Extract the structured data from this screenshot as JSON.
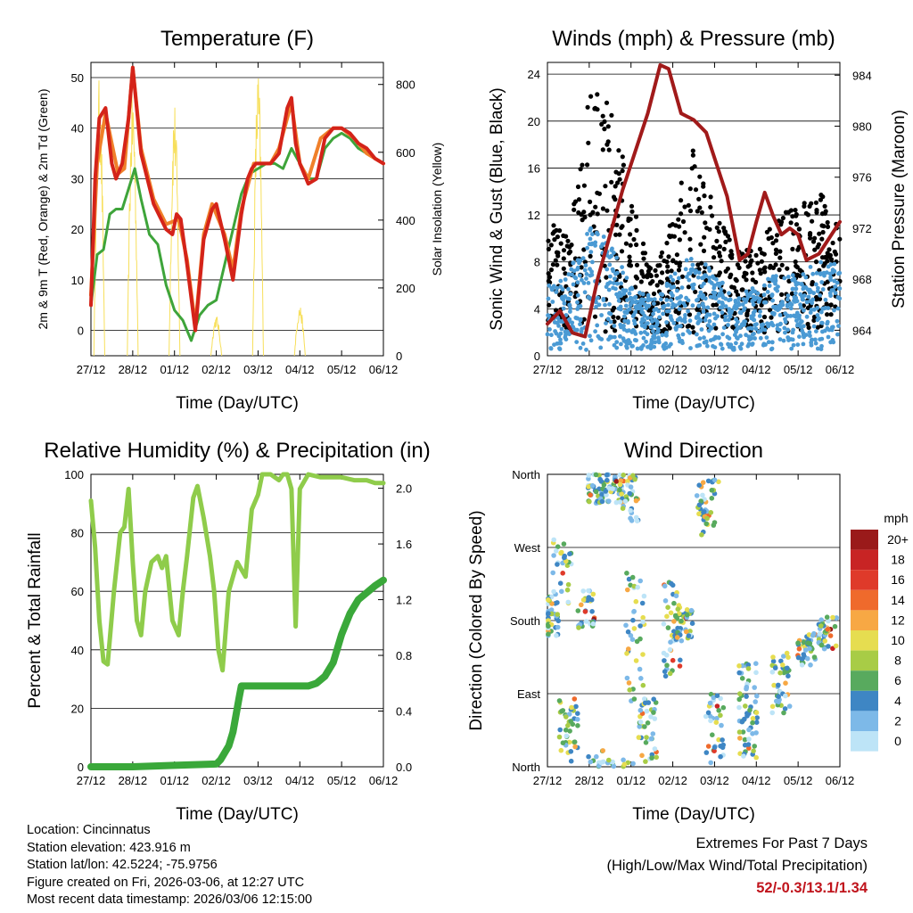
{
  "x_ticks": [
    "27/12",
    "28/12",
    "01/12",
    "02/12",
    "03/12",
    "04/12",
    "05/12",
    "06/12"
  ],
  "x_label": "Time (Day/UTC)",
  "colors": {
    "temp2m": "#d42319",
    "temp9m": "#f0802a",
    "dewpoint": "#3ea43a",
    "solar": "#f7df5a",
    "wind": "#4a9ad4",
    "gust": "#000000",
    "pressure": "#a11a1a",
    "rh": "#8fcc4b",
    "precip": "#3aa83a"
  },
  "chart_data": [
    {
      "id": "temperature",
      "type": "line",
      "title": "Temperature (F)",
      "xlabel": "Time (Day/UTC)",
      "ylabel": "2m & 9m T (Red, Orange) & 2m Td (Green)",
      "y2label": "Solar Insolation (Yellow)",
      "ylim": [
        -5,
        53
      ],
      "y2lim": [
        0,
        865
      ],
      "yticks": [
        0,
        10,
        20,
        30,
        40,
        50
      ],
      "y2ticks": [
        0,
        200,
        400,
        600,
        800
      ],
      "series": [
        {
          "name": "2m T",
          "axis": "left",
          "style": "temp2m",
          "x": [
            0,
            0.1,
            0.2,
            0.35,
            0.5,
            0.6,
            0.75,
            0.9,
            1.0,
            1.2,
            1.5,
            1.8,
            1.95,
            2.05,
            2.15,
            2.3,
            2.5,
            2.7,
            2.9,
            3.0,
            3.2,
            3.4,
            3.6,
            3.75,
            3.85,
            3.95,
            4.1,
            4.3,
            4.5,
            4.7,
            4.8,
            4.9,
            5.0,
            5.2,
            5.4,
            5.6,
            5.8,
            6.0,
            6.2,
            6.4,
            6.6,
            6.8,
            7.0
          ],
          "values": [
            5,
            30,
            42,
            44,
            33,
            30,
            33,
            42,
            52,
            35,
            25,
            20,
            19,
            23,
            22,
            13,
            0,
            18,
            24,
            25,
            18,
            10,
            23,
            30,
            32,
            33,
            33,
            33,
            35,
            44,
            46,
            37,
            33,
            29,
            30,
            38,
            40,
            40,
            39,
            37,
            36,
            34,
            33
          ]
        },
        {
          "name": "9m T",
          "axis": "left",
          "style": "temp9m",
          "x": [
            0,
            0.15,
            0.35,
            0.5,
            0.65,
            0.8,
            1.0,
            1.2,
            1.5,
            1.8,
            2.1,
            2.3,
            2.5,
            2.7,
            2.9,
            3.2,
            3.4,
            3.6,
            3.9,
            4.3,
            4.5,
            4.8,
            5.0,
            5.2,
            5.5,
            5.8,
            6.0,
            6.3,
            6.6,
            7.0
          ],
          "values": [
            7,
            33,
            43,
            37,
            31,
            32,
            52,
            36,
            26,
            21,
            22,
            14,
            1,
            19,
            25,
            19,
            12,
            24,
            33,
            33,
            36,
            45,
            33,
            30,
            38,
            40,
            40,
            38,
            35,
            33
          ]
        },
        {
          "name": "2m Td",
          "axis": "left",
          "style": "dewpoint",
          "x": [
            0,
            0.15,
            0.3,
            0.45,
            0.6,
            0.75,
            0.9,
            1.05,
            1.2,
            1.4,
            1.6,
            1.8,
            2.0,
            2.2,
            2.4,
            2.6,
            2.8,
            3.0,
            3.2,
            3.4,
            3.6,
            3.8,
            4.0,
            4.2,
            4.4,
            4.6,
            4.8,
            5.0,
            5.2,
            5.4,
            5.6,
            5.8,
            6.0,
            6.2,
            6.4,
            6.6,
            6.8,
            7.0
          ],
          "values": [
            5,
            15,
            16,
            23,
            24,
            24,
            28,
            32,
            26,
            19,
            17,
            9,
            4,
            2,
            -2,
            3,
            5,
            6,
            13,
            20,
            27,
            31,
            32,
            33,
            33,
            32,
            36,
            33,
            30,
            30,
            36,
            38,
            39,
            38,
            36,
            35,
            34,
            33
          ]
        },
        {
          "name": "Solar Insolation",
          "axis": "right",
          "style": "solar",
          "peaks": [
            [
              0.2,
              820
            ],
            [
              1.0,
              790
            ],
            [
              2.0,
              760
            ],
            [
              3.0,
              120
            ],
            [
              4.0,
              850
            ],
            [
              5.0,
              150
            ]
          ]
        }
      ]
    },
    {
      "id": "winds",
      "type": "scatter",
      "title": "Winds (mph) & Pressure (mb)",
      "xlabel": "Time (Day/UTC)",
      "ylabel": "Sonic Wind & Gust (Blue, Black)",
      "y2label": "Station Pressure (Maroon)",
      "ylim": [
        0,
        25
      ],
      "y2lim": [
        962,
        985
      ],
      "yticks": [
        0,
        4,
        8,
        12,
        16,
        20,
        24
      ],
      "y2ticks": [
        964,
        968,
        972,
        976,
        980,
        984
      ],
      "series": [
        {
          "name": "Sonic Wind",
          "axis": "left",
          "style": "wind",
          "envelope_x": [
            0,
            0.5,
            1.0,
            1.5,
            2.0,
            2.5,
            3.0,
            3.5,
            4.0,
            4.5,
            5.0,
            5.5,
            6.0,
            6.5,
            7.0
          ],
          "envelope": [
            6,
            7,
            11,
            10,
            6,
            5,
            7,
            9,
            7,
            5,
            6,
            7,
            7,
            8,
            8
          ]
        },
        {
          "name": "Gust",
          "axis": "left",
          "style": "gust",
          "envelope_x": [
            0,
            0.5,
            1.0,
            1.5,
            2.0,
            2.5,
            3.0,
            3.5,
            4.0,
            4.5,
            5.0,
            5.5,
            6.0,
            6.5,
            7.0
          ],
          "envelope": [
            12,
            10,
            23,
            22,
            14,
            7,
            13,
            19,
            13,
            9,
            9,
            12,
            13,
            14,
            12
          ]
        },
        {
          "name": "Station Pressure",
          "axis": "right",
          "style": "pressure",
          "type": "line",
          "x": [
            0,
            0.3,
            0.6,
            0.9,
            1.2,
            1.5,
            1.8,
            2.1,
            2.4,
            2.7,
            2.9,
            3.2,
            3.5,
            3.8,
            4.0,
            4.3,
            4.6,
            4.8,
            5.0,
            5.2,
            5.4,
            5.6,
            5.8,
            6.0,
            6.2,
            6.5,
            6.8,
            7.0
          ],
          "values": [
            964.5,
            965.5,
            963.8,
            963.5,
            968,
            971.5,
            975,
            978,
            981,
            984.8,
            984.5,
            981,
            980.5,
            979.5,
            977.5,
            974.5,
            969.5,
            970,
            972.5,
            974.8,
            973,
            971.5,
            972,
            971.5,
            969.5,
            970,
            971.5,
            972.5
          ]
        }
      ]
    },
    {
      "id": "humidity",
      "type": "line",
      "title": "Relative Humidity (%) & Precipitation (in)",
      "xlabel": "Time (Day/UTC)",
      "ylabel": "Percent & Total Rainfall",
      "ylim": [
        0,
        100
      ],
      "y2lim": [
        0,
        2.1
      ],
      "yticks": [
        0,
        20,
        40,
        60,
        80,
        100
      ],
      "y2ticks": [
        0.0,
        0.4,
        0.8,
        1.2,
        1.6,
        2.0
      ],
      "series": [
        {
          "name": "Relative Humidity",
          "axis": "left",
          "style": "rh",
          "x": [
            0,
            0.1,
            0.2,
            0.3,
            0.4,
            0.55,
            0.7,
            0.8,
            0.9,
            1.0,
            1.1,
            1.2,
            1.3,
            1.45,
            1.6,
            1.7,
            1.8,
            1.95,
            2.1,
            2.2,
            2.3,
            2.45,
            2.55,
            2.7,
            2.85,
            2.95,
            3.05,
            3.15,
            3.3,
            3.5,
            3.7,
            3.85,
            4.0,
            4.1,
            4.2,
            4.3,
            4.4,
            4.5,
            4.6,
            4.7,
            4.8,
            4.9,
            5.0,
            5.2,
            5.5,
            5.8,
            6.0,
            6.3,
            6.6,
            6.8,
            7.0
          ],
          "values": [
            91,
            75,
            50,
            36,
            35,
            60,
            80,
            82,
            95,
            70,
            50,
            45,
            60,
            70,
            72,
            68,
            72,
            50,
            45,
            60,
            72,
            92,
            96,
            85,
            72,
            60,
            40,
            33,
            60,
            70,
            65,
            88,
            93,
            100,
            100,
            100,
            99,
            98,
            100,
            100,
            95,
            48,
            95,
            100,
            99,
            99,
            99,
            98,
            98,
            97,
            97
          ]
        },
        {
          "name": "Total Precipitation",
          "axis": "right",
          "style": "precip",
          "x": [
            0,
            1.0,
            2.0,
            3.0,
            3.1,
            3.3,
            3.4,
            3.55,
            3.6,
            4.0,
            5.0,
            5.2,
            5.4,
            5.6,
            5.8,
            6.0,
            6.2,
            6.4,
            6.6,
            6.8,
            7.0
          ],
          "values": [
            0,
            0,
            0.01,
            0.02,
            0.05,
            0.15,
            0.25,
            0.5,
            0.58,
            0.58,
            0.58,
            0.58,
            0.6,
            0.65,
            0.75,
            0.95,
            1.1,
            1.2,
            1.25,
            1.3,
            1.34
          ]
        }
      ]
    },
    {
      "id": "direction",
      "type": "scatter",
      "title": "Wind Direction",
      "xlabel": "Time (Day/UTC)",
      "ylabel": "Direction (Colored By Speed)",
      "ylim": [
        0,
        360
      ],
      "yticks": [
        "North",
        "East",
        "South",
        "West",
        "North"
      ],
      "colorbar": {
        "unit": "mph",
        "labels": [
          "20+",
          "18",
          "16",
          "14",
          "12",
          "10",
          "8",
          "6",
          "4",
          "2",
          "0"
        ],
        "colors": [
          "#9a1a1a",
          "#c82424",
          "#df3a2a",
          "#ef6a2c",
          "#f7a844",
          "#e6dd50",
          "#a8cc46",
          "#58aa5e",
          "#3e86c4",
          "#7db9e8",
          "#bde4f7"
        ]
      },
      "clusters": [
        {
          "x": 0.05,
          "dir": 185,
          "spread": 25,
          "n": 40
        },
        {
          "x": 0.35,
          "dir": 240,
          "spread": 40,
          "n": 30
        },
        {
          "x": 0.5,
          "dir": 45,
          "spread": 40,
          "n": 40
        },
        {
          "x": 0.9,
          "dir": 195,
          "spread": 25,
          "n": 30
        },
        {
          "x": 1.2,
          "dir": 350,
          "spread": 30,
          "n": 50
        },
        {
          "x": 1.6,
          "dir": 345,
          "spread": 25,
          "n": 50
        },
        {
          "x": 1.95,
          "dir": 335,
          "spread": 35,
          "n": 40
        },
        {
          "x": 2.1,
          "dir": 160,
          "spread": 80,
          "n": 40
        },
        {
          "x": 2.4,
          "dir": 45,
          "spread": 40,
          "n": 40
        },
        {
          "x": 3.0,
          "dir": 170,
          "spread": 60,
          "n": 40
        },
        {
          "x": 3.25,
          "dir": 175,
          "spread": 20,
          "n": 40
        },
        {
          "x": 3.8,
          "dir": 320,
          "spread": 35,
          "n": 40
        },
        {
          "x": 4.0,
          "dir": 40,
          "spread": 50,
          "n": 40
        },
        {
          "x": 4.8,
          "dir": 70,
          "spread": 60,
          "n": 60
        },
        {
          "x": 5.6,
          "dir": 100,
          "spread": 40,
          "n": 40
        },
        {
          "x": 6.2,
          "dir": 145,
          "spread": 20,
          "n": 40
        },
        {
          "x": 6.7,
          "dir": 165,
          "spread": 20,
          "n": 40
        }
      ]
    }
  ],
  "meta": {
    "location": "Location: Cincinnatus",
    "elevation": "Station elevation: 423.916 m",
    "latlon": "Station lat/lon: 42.5224; -75.9756",
    "created": "Figure created on Fri, 2026-03-06, at 12:27 UTC",
    "recent": "Most recent data timestamp: 2026/03/06 12:15:00"
  },
  "extremes": {
    "line1": "Extremes For Past 7 Days",
    "line2": "(High/Low/Max Wind/Total Precipitation)",
    "values": "52/-0.3/13.1/1.34"
  }
}
